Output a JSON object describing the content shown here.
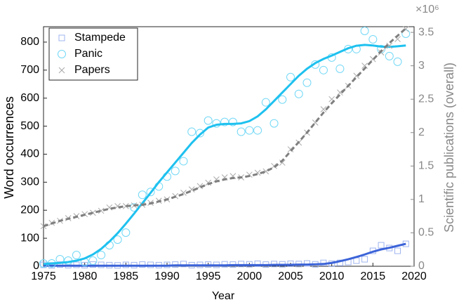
{
  "chart_data": {
    "type": "scatter",
    "xlabel": "Year",
    "ylabel": "Word occurrences",
    "y2label": "Scientific publications (overall)",
    "y2_multiplier": "×10⁶",
    "x": [
      1975,
      1976,
      1977,
      1978,
      1979,
      1980,
      1981,
      1982,
      1983,
      1984,
      1985,
      1986,
      1987,
      1988,
      1989,
      1990,
      1991,
      1992,
      1993,
      1994,
      1995,
      1996,
      1997,
      1998,
      1999,
      2000,
      2001,
      2002,
      2003,
      2004,
      2005,
      2006,
      2007,
      2008,
      2009,
      2010,
      2011,
      2012,
      2013,
      2014,
      2015,
      2016,
      2017,
      2018,
      2019
    ],
    "xlim": [
      1975,
      2020
    ],
    "xticks": [
      1975,
      1980,
      1985,
      1990,
      1995,
      2000,
      2005,
      2010,
      2015,
      2020
    ],
    "ylim": [
      0,
      855
    ],
    "yticks": [
      0,
      100,
      200,
      300,
      400,
      500,
      600,
      700,
      800
    ],
    "y2lim": [
      0,
      3.585
    ],
    "y2ticks": [
      0,
      0.5,
      1,
      1.5,
      2,
      2.5,
      3,
      3.5
    ],
    "legend": "upper left",
    "series": [
      {
        "name": "Stampede",
        "marker": "square",
        "color": "#9fb4ef",
        "fit_color": "#3b63d8",
        "values": [
          5,
          3,
          6,
          4,
          5,
          4,
          6,
          5,
          4,
          3,
          5,
          4,
          6,
          5,
          4,
          5,
          6,
          8,
          4,
          5,
          6,
          5,
          7,
          6,
          8,
          7,
          9,
          6,
          8,
          7,
          9,
          8,
          10,
          7,
          12,
          9,
          12,
          15,
          20,
          25,
          55,
          75,
          65,
          55,
          80
        ],
        "fit": [
          2,
          2,
          2,
          2,
          2,
          2,
          2,
          2,
          2,
          2,
          2,
          2,
          2,
          2,
          2,
          2,
          3,
          3,
          3,
          3,
          3,
          3,
          3,
          4,
          4,
          4,
          4,
          4,
          5,
          5,
          5,
          6,
          6,
          7,
          8,
          12,
          18,
          25,
          33,
          42,
          52,
          60,
          66,
          73,
          80
        ]
      },
      {
        "name": "Panic",
        "marker": "circle",
        "color": "#72d8f6",
        "fit_color": "#1ec1ef",
        "values": [
          10,
          10,
          25,
          20,
          40,
          15,
          20,
          40,
          75,
          95,
          120,
          210,
          255,
          265,
          285,
          320,
          340,
          375,
          480,
          475,
          520,
          510,
          515,
          515,
          480,
          485,
          485,
          585,
          510,
          595,
          675,
          615,
          655,
          720,
          700,
          745,
          705,
          775,
          775,
          840,
          810,
          775,
          750,
          730,
          830
        ],
        "fit": [
          8,
          10,
          12,
          15,
          20,
          28,
          42,
          62,
          88,
          118,
          152,
          188,
          225,
          262,
          300,
          335,
          370,
          405,
          440,
          470,
          495,
          505,
          508,
          508,
          510,
          518,
          535,
          560,
          590,
          620,
          650,
          680,
          705,
          725,
          740,
          752,
          765,
          778,
          787,
          790,
          788,
          784,
          783,
          785,
          788
        ]
      },
      {
        "name": "Papers",
        "marker": "x",
        "axis": "y2",
        "color": "#a9a9a9",
        "fit_color": "#7f7f7f",
        "values": [
          0.6,
          0.65,
          0.68,
          0.72,
          0.75,
          0.78,
          0.8,
          0.83,
          0.88,
          0.9,
          0.9,
          0.91,
          0.92,
          0.95,
          0.98,
          1.0,
          1.05,
          1.1,
          1.15,
          1.2,
          1.25,
          1.3,
          1.33,
          1.35,
          1.33,
          1.37,
          1.4,
          1.42,
          1.5,
          1.55,
          1.75,
          1.85,
          2.0,
          2.15,
          2.35,
          2.5,
          2.6,
          2.7,
          2.85,
          3.0,
          3.1,
          3.2,
          3.3,
          3.4,
          3.55
        ],
        "fit": [
          0.6,
          0.64,
          0.68,
          0.71,
          0.74,
          0.77,
          0.8,
          0.83,
          0.86,
          0.88,
          0.9,
          0.91,
          0.92,
          0.94,
          0.97,
          1.0,
          1.04,
          1.08,
          1.13,
          1.18,
          1.23,
          1.27,
          1.3,
          1.32,
          1.33,
          1.35,
          1.38,
          1.42,
          1.48,
          1.58,
          1.72,
          1.86,
          2.0,
          2.15,
          2.3,
          2.44,
          2.57,
          2.7,
          2.83,
          2.96,
          3.09,
          3.22,
          3.34,
          3.45,
          3.56
        ]
      }
    ]
  }
}
